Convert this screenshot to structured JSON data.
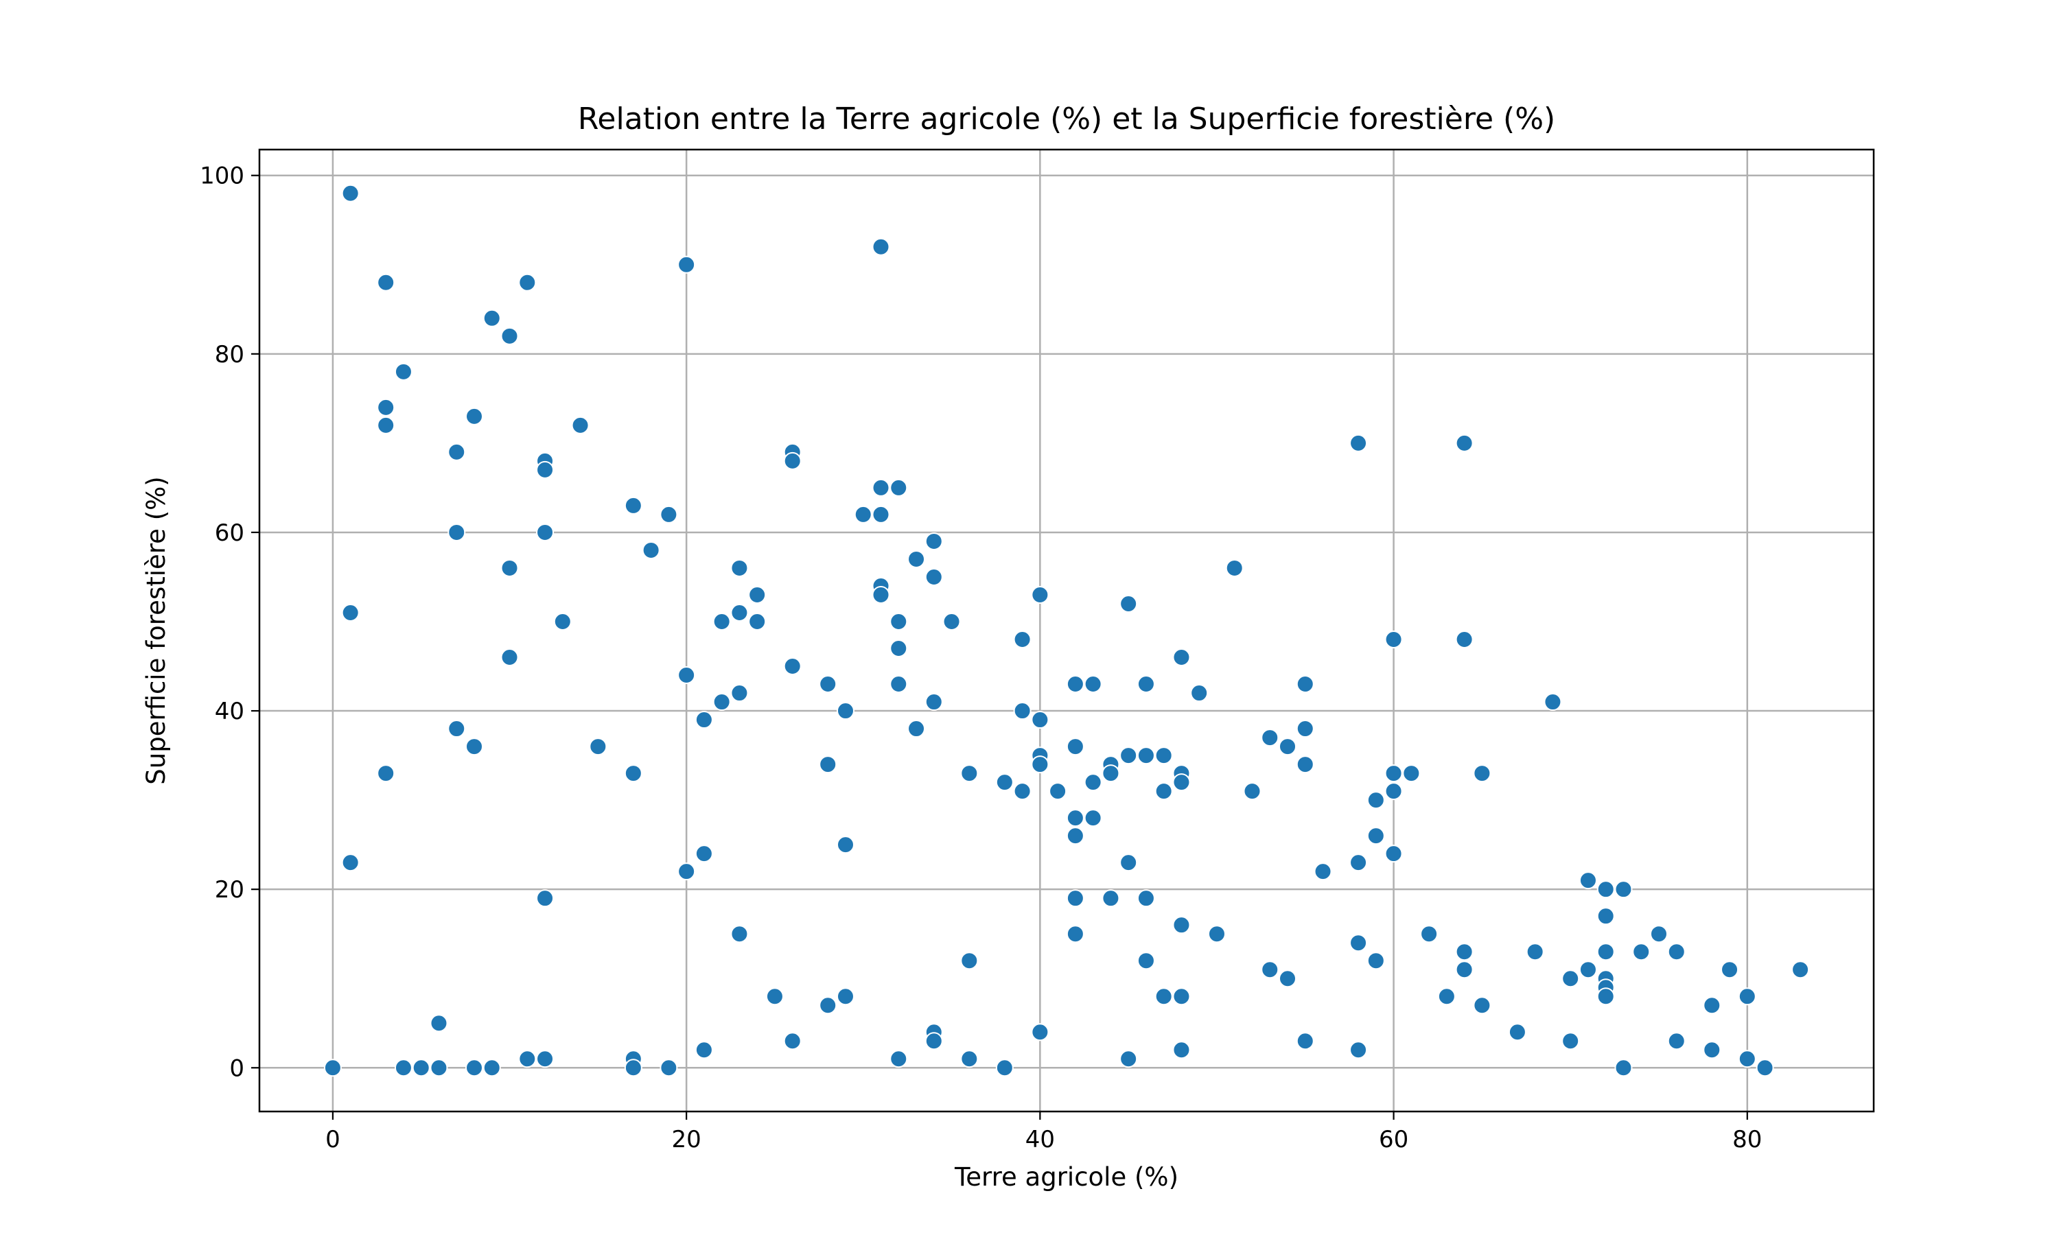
{
  "chart_data": {
    "type": "scatter",
    "title": "Relation entre la Terre agricole (%) et la Superficie forestière (%)",
    "xlabel": "Terre agricole (%)",
    "ylabel": "Superficie forestière (%)",
    "xlim": [
      -4.15,
      87.15
    ],
    "ylim": [
      -4.9,
      102.9
    ],
    "xticks": [
      0,
      20,
      40,
      60,
      80
    ],
    "yticks": [
      0,
      20,
      40,
      60,
      80,
      100
    ],
    "grid": true,
    "marker_color": "#1f77b4",
    "points": [
      [
        0,
        0
      ],
      [
        1,
        98
      ],
      [
        1,
        51
      ],
      [
        1,
        23
      ],
      [
        3,
        88
      ],
      [
        3,
        74
      ],
      [
        3,
        72
      ],
      [
        3,
        33
      ],
      [
        4,
        78
      ],
      [
        4,
        0
      ],
      [
        5,
        0
      ],
      [
        6,
        5
      ],
      [
        6,
        0
      ],
      [
        7,
        69
      ],
      [
        7,
        60
      ],
      [
        7,
        38
      ],
      [
        8,
        73
      ],
      [
        8,
        36
      ],
      [
        8,
        0
      ],
      [
        9,
        84
      ],
      [
        9,
        0
      ],
      [
        10,
        82
      ],
      [
        10,
        56
      ],
      [
        10,
        46
      ],
      [
        11,
        88
      ],
      [
        11,
        1
      ],
      [
        12,
        68
      ],
      [
        12,
        67
      ],
      [
        12,
        60
      ],
      [
        12,
        19
      ],
      [
        12,
        1
      ],
      [
        13,
        50
      ],
      [
        14,
        72
      ],
      [
        15,
        36
      ],
      [
        17,
        63
      ],
      [
        17,
        33
      ],
      [
        17,
        1
      ],
      [
        17,
        0
      ],
      [
        18,
        58
      ],
      [
        19,
        62
      ],
      [
        19,
        0
      ],
      [
        20,
        90
      ],
      [
        20,
        44
      ],
      [
        20,
        22
      ],
      [
        21,
        39
      ],
      [
        21,
        24
      ],
      [
        21,
        2
      ],
      [
        22,
        50
      ],
      [
        22,
        41
      ],
      [
        23,
        56
      ],
      [
        23,
        51
      ],
      [
        23,
        42
      ],
      [
        23,
        15
      ],
      [
        24,
        53
      ],
      [
        24,
        50
      ],
      [
        25,
        8
      ],
      [
        26,
        69
      ],
      [
        26,
        68
      ],
      [
        26,
        45
      ],
      [
        26,
        3
      ],
      [
        28,
        43
      ],
      [
        28,
        34
      ],
      [
        28,
        7
      ],
      [
        29,
        40
      ],
      [
        29,
        25
      ],
      [
        29,
        8
      ],
      [
        30,
        62
      ],
      [
        31,
        92
      ],
      [
        31,
        65
      ],
      [
        31,
        62
      ],
      [
        31,
        54
      ],
      [
        31,
        53
      ],
      [
        32,
        65
      ],
      [
        32,
        50
      ],
      [
        32,
        47
      ],
      [
        32,
        43
      ],
      [
        32,
        1
      ],
      [
        33,
        57
      ],
      [
        33,
        38
      ],
      [
        34,
        59
      ],
      [
        34,
        55
      ],
      [
        34,
        41
      ],
      [
        34,
        4
      ],
      [
        34,
        3
      ],
      [
        35,
        50
      ],
      [
        36,
        33
      ],
      [
        36,
        12
      ],
      [
        36,
        1
      ],
      [
        38,
        32
      ],
      [
        38,
        0
      ],
      [
        39,
        48
      ],
      [
        39,
        40
      ],
      [
        39,
        31
      ],
      [
        40,
        53
      ],
      [
        40,
        39
      ],
      [
        40,
        35
      ],
      [
        40,
        34
      ],
      [
        40,
        4
      ],
      [
        41,
        31
      ],
      [
        42,
        43
      ],
      [
        42,
        36
      ],
      [
        42,
        28
      ],
      [
        42,
        26
      ],
      [
        42,
        19
      ],
      [
        42,
        15
      ],
      [
        43,
        43
      ],
      [
        43,
        32
      ],
      [
        43,
        28
      ],
      [
        44,
        34
      ],
      [
        44,
        33
      ],
      [
        44,
        19
      ],
      [
        45,
        52
      ],
      [
        45,
        35
      ],
      [
        45,
        23
      ],
      [
        45,
        1
      ],
      [
        46,
        43
      ],
      [
        46,
        35
      ],
      [
        46,
        19
      ],
      [
        46,
        12
      ],
      [
        47,
        35
      ],
      [
        47,
        31
      ],
      [
        47,
        8
      ],
      [
        48,
        46
      ],
      [
        48,
        33
      ],
      [
        48,
        32
      ],
      [
        48,
        16
      ],
      [
        48,
        8
      ],
      [
        48,
        2
      ],
      [
        49,
        42
      ],
      [
        50,
        15
      ],
      [
        51,
        56
      ],
      [
        52,
        31
      ],
      [
        53,
        37
      ],
      [
        53,
        11
      ],
      [
        54,
        36
      ],
      [
        54,
        10
      ],
      [
        55,
        43
      ],
      [
        55,
        38
      ],
      [
        55,
        34
      ],
      [
        55,
        3
      ],
      [
        56,
        22
      ],
      [
        58,
        70
      ],
      [
        58,
        23
      ],
      [
        58,
        14
      ],
      [
        58,
        2
      ],
      [
        59,
        30
      ],
      [
        59,
        26
      ],
      [
        59,
        12
      ],
      [
        60,
        48
      ],
      [
        60,
        33
      ],
      [
        60,
        31
      ],
      [
        60,
        24
      ],
      [
        61,
        33
      ],
      [
        62,
        15
      ],
      [
        63,
        8
      ],
      [
        64,
        70
      ],
      [
        64,
        48
      ],
      [
        64,
        13
      ],
      [
        64,
        11
      ],
      [
        65,
        33
      ],
      [
        65,
        7
      ],
      [
        67,
        4
      ],
      [
        68,
        13
      ],
      [
        69,
        41
      ],
      [
        70,
        10
      ],
      [
        70,
        3
      ],
      [
        71,
        21
      ],
      [
        71,
        11
      ],
      [
        72,
        20
      ],
      [
        72,
        17
      ],
      [
        72,
        13
      ],
      [
        72,
        10
      ],
      [
        72,
        9
      ],
      [
        72,
        8
      ],
      [
        73,
        20
      ],
      [
        73,
        0
      ],
      [
        74,
        13
      ],
      [
        75,
        15
      ],
      [
        76,
        13
      ],
      [
        76,
        3
      ],
      [
        78,
        7
      ],
      [
        78,
        2
      ],
      [
        79,
        11
      ],
      [
        80,
        8
      ],
      [
        80,
        1
      ],
      [
        81,
        0
      ],
      [
        83,
        11
      ]
    ]
  }
}
